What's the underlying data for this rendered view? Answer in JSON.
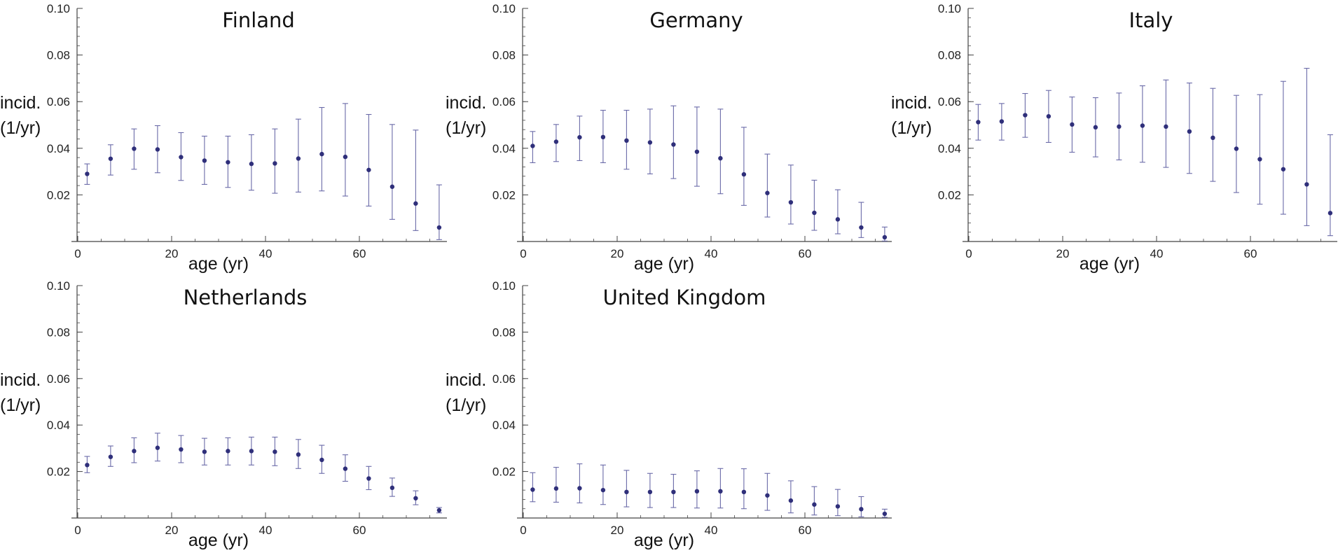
{
  "chart_data": [
    {
      "type": "scatter",
      "title": "Finland",
      "xlabel": "age (yr)",
      "ylabel": [
        "incid.",
        "(1/yr)"
      ],
      "xlim": [
        -2,
        80
      ],
      "ylim": [
        0,
        0.1
      ],
      "xticks": [
        0,
        20,
        40,
        60
      ],
      "yticks": [
        0.02,
        0.04,
        0.06,
        0.08,
        0.1
      ],
      "ytick_labels": [
        "0.02",
        "0.04",
        "0.06",
        "0.08",
        "0.10"
      ],
      "x": [
        2,
        7,
        12,
        17,
        22,
        27,
        32,
        37,
        42,
        47,
        52,
        57,
        62,
        67,
        72,
        77
      ],
      "y": [
        0.029,
        0.0355,
        0.0398,
        0.0395,
        0.0362,
        0.0347,
        0.034,
        0.0333,
        0.0335,
        0.0356,
        0.0375,
        0.0363,
        0.0307,
        0.0235,
        0.0163,
        0.006
      ],
      "y_low": [
        0.0245,
        0.0285,
        0.031,
        0.0295,
        0.0262,
        0.0245,
        0.0232,
        0.022,
        0.0207,
        0.0212,
        0.0217,
        0.0195,
        0.0152,
        0.0095,
        0.0047,
        0.0008
      ],
      "y_high": [
        0.0333,
        0.0415,
        0.0483,
        0.0497,
        0.0467,
        0.0452,
        0.0452,
        0.0458,
        0.0483,
        0.0525,
        0.0575,
        0.0592,
        0.0545,
        0.0502,
        0.0478,
        0.0243
      ]
    },
    {
      "type": "scatter",
      "title": "Germany",
      "xlabel": "age (yr)",
      "ylabel": [
        "incid.",
        "(1/yr)"
      ],
      "xlim": [
        -2,
        80
      ],
      "ylim": [
        0,
        0.1
      ],
      "xticks": [
        0,
        20,
        40,
        60
      ],
      "yticks": [
        0.02,
        0.04,
        0.06,
        0.08,
        0.1
      ],
      "ytick_labels": [
        "0.02",
        "0.04",
        "0.06",
        "0.08",
        "0.10"
      ],
      "x": [
        2,
        7,
        12,
        17,
        22,
        27,
        32,
        37,
        42,
        47,
        52,
        57,
        62,
        67,
        72,
        77
      ],
      "y": [
        0.041,
        0.0428,
        0.0447,
        0.0448,
        0.0433,
        0.0425,
        0.0416,
        0.0385,
        0.0357,
        0.0288,
        0.0208,
        0.0168,
        0.0123,
        0.0095,
        0.006,
        0.0018
      ],
      "y_low": [
        0.0338,
        0.0343,
        0.0347,
        0.0338,
        0.031,
        0.029,
        0.027,
        0.0237,
        0.0205,
        0.0155,
        0.0105,
        0.0075,
        0.0048,
        0.0033,
        0.0017,
        0.0002
      ],
      "y_high": [
        0.0472,
        0.0502,
        0.0538,
        0.0563,
        0.0563,
        0.0568,
        0.0582,
        0.0577,
        0.0568,
        0.049,
        0.0375,
        0.0328,
        0.0263,
        0.0222,
        0.0168,
        0.0062
      ]
    },
    {
      "type": "scatter",
      "title": "Italy",
      "xlabel": "age (yr)",
      "ylabel": [
        "incid.",
        "(1/yr)"
      ],
      "xlim": [
        -2,
        80
      ],
      "ylim": [
        0,
        0.1
      ],
      "xticks": [
        0,
        20,
        40,
        60
      ],
      "yticks": [
        0.02,
        0.04,
        0.06,
        0.08,
        0.1
      ],
      "ytick_labels": [
        "0.02",
        "0.04",
        "0.06",
        "0.08",
        "0.10"
      ],
      "x": [
        2,
        7,
        12,
        17,
        22,
        27,
        32,
        37,
        42,
        47,
        52,
        57,
        62,
        67,
        72,
        77
      ],
      "y": [
        0.0512,
        0.0515,
        0.0542,
        0.0537,
        0.0502,
        0.049,
        0.0493,
        0.0497,
        0.0493,
        0.0472,
        0.0445,
        0.0398,
        0.0353,
        0.031,
        0.0245,
        0.0122
      ],
      "y_low": [
        0.0435,
        0.0435,
        0.0447,
        0.0425,
        0.0383,
        0.0363,
        0.035,
        0.034,
        0.0318,
        0.0292,
        0.0258,
        0.021,
        0.016,
        0.0117,
        0.0068,
        0.0025
      ],
      "y_high": [
        0.0588,
        0.0592,
        0.0635,
        0.0648,
        0.062,
        0.0617,
        0.0637,
        0.0668,
        0.0693,
        0.068,
        0.0657,
        0.0627,
        0.063,
        0.0687,
        0.0743,
        0.0458
      ]
    },
    {
      "type": "scatter",
      "title": "Netherlands",
      "xlabel": "age (yr)",
      "ylabel": [
        "incid.",
        "(1/yr)"
      ],
      "xlim": [
        -2,
        80
      ],
      "ylim": [
        0,
        0.1
      ],
      "xticks": [
        0,
        20,
        40,
        60
      ],
      "yticks": [
        0.02,
        0.04,
        0.06,
        0.08,
        0.1
      ],
      "ytick_labels": [
        "0.02",
        "0.04",
        "0.06",
        "0.08",
        "0.10"
      ],
      "x": [
        2,
        7,
        12,
        17,
        22,
        27,
        32,
        37,
        42,
        47,
        52,
        57,
        62,
        67,
        72,
        77
      ],
      "y": [
        0.0228,
        0.0263,
        0.0288,
        0.0302,
        0.0295,
        0.0285,
        0.0288,
        0.0288,
        0.0285,
        0.0273,
        0.025,
        0.0212,
        0.017,
        0.013,
        0.0085,
        0.0033
      ],
      "y_low": [
        0.0195,
        0.0222,
        0.0238,
        0.0245,
        0.0238,
        0.0228,
        0.0228,
        0.0228,
        0.0225,
        0.0213,
        0.0192,
        0.0158,
        0.0122,
        0.0093,
        0.0057,
        0.0022
      ],
      "y_high": [
        0.0265,
        0.031,
        0.0345,
        0.0365,
        0.0355,
        0.0343,
        0.0345,
        0.0348,
        0.0348,
        0.0338,
        0.0313,
        0.0272,
        0.0222,
        0.0172,
        0.0117,
        0.0045
      ]
    },
    {
      "type": "scatter",
      "title": "United Kingdom",
      "xlabel": "age (yr)",
      "ylabel": [
        "incid.",
        "(1/yr)"
      ],
      "xlim": [
        -2,
        80
      ],
      "ylim": [
        0,
        0.1
      ],
      "xticks": [
        0,
        20,
        40,
        60
      ],
      "yticks": [
        0.02,
        0.04,
        0.06,
        0.08,
        0.1
      ],
      "ytick_labels": [
        "0.02",
        "0.04",
        "0.06",
        "0.08",
        "0.10"
      ],
      "x": [
        2,
        7,
        12,
        17,
        22,
        27,
        32,
        37,
        42,
        47,
        52,
        57,
        62,
        67,
        72,
        77
      ],
      "y": [
        0.0122,
        0.0127,
        0.0128,
        0.012,
        0.0112,
        0.0112,
        0.0112,
        0.0115,
        0.0115,
        0.0112,
        0.0097,
        0.0075,
        0.0058,
        0.005,
        0.0038,
        0.0018
      ],
      "y_low": [
        0.007,
        0.0068,
        0.0065,
        0.0058,
        0.0048,
        0.0045,
        0.0045,
        0.0043,
        0.0043,
        0.004,
        0.0033,
        0.0022,
        0.0013,
        0.001,
        0.0005,
        0.0003
      ],
      "y_high": [
        0.0195,
        0.0218,
        0.0233,
        0.0228,
        0.0205,
        0.0192,
        0.0188,
        0.0203,
        0.0213,
        0.0212,
        0.0192,
        0.016,
        0.0135,
        0.0123,
        0.0092,
        0.0038
      ]
    }
  ],
  "colors": {
    "marker": "#2f2f7a",
    "errorbar": "#6a6aa8",
    "axis": "#444444",
    "text": "#111111"
  }
}
